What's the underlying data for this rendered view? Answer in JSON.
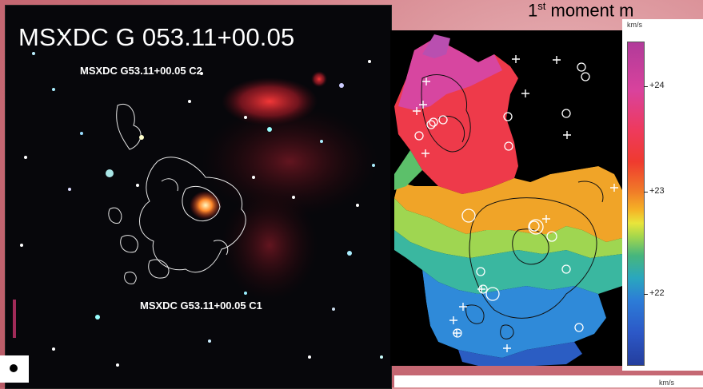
{
  "left_panel": {
    "title": "MSXDC G 053.11+00.05",
    "label_c2": "MSXDC G53.11+00.05 C2",
    "label_c1": "MSXDC G53.11+00.05 C1"
  },
  "right_panel": {
    "title_prefix": "1",
    "title_sup": "st",
    "title_suffix": " moment m",
    "colorbar_unit": "km/s",
    "colorbar_ticks": [
      "+24",
      "+23",
      "+22"
    ],
    "bottom_unit": "km/s"
  },
  "colors": {
    "nebula_red": "#d8303a",
    "contour_white": "#e8e8e8",
    "scale_bar": "#a02a58"
  }
}
